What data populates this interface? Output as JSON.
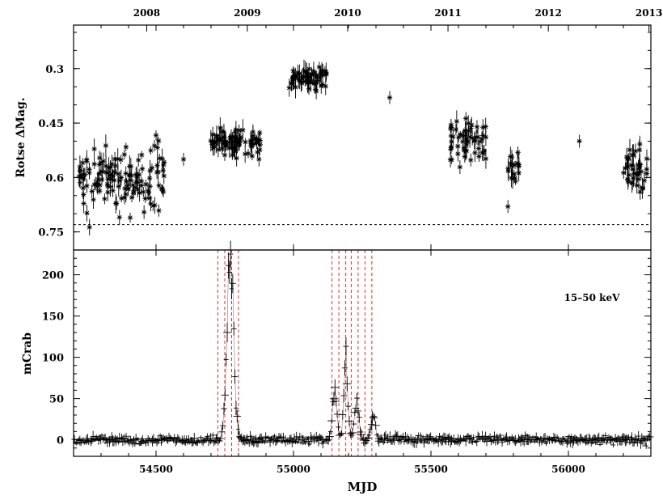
{
  "chart_data": {
    "type": "scatter",
    "xlabel": "MJD",
    "xlim": [
      54200,
      56300
    ],
    "x_ticks": [
      54500,
      55000,
      55500,
      56000
    ],
    "x_tick_labels": [
      "54500",
      "55000",
      "55500",
      "56000"
    ],
    "top_axis": {
      "tick_values": [
        54466,
        54832,
        55197,
        55562,
        55927,
        56293
      ],
      "tick_labels": [
        "2008",
        "2009",
        "2010",
        "2011",
        "2012",
        "2013"
      ]
    },
    "panels": [
      {
        "name": "optical",
        "ylabel": "Rotse ΔMag.",
        "ylim": [
          0.8,
          0.18
        ],
        "inverted": true,
        "y_ticks": [
          0.3,
          0.45,
          0.6,
          0.75
        ],
        "y_tick_labels": [
          "0.3",
          "0.45",
          "0.6",
          "0.75"
        ],
        "reference_line": 0.73,
        "marker": "asterisk",
        "groups": [
          {
            "x_range": [
              54220,
              54530
            ],
            "y_center": 0.6,
            "y_spread": 0.1
          },
          {
            "x_range": [
              54690,
              54880
            ],
            "y_center": 0.5,
            "y_spread": 0.04
          },
          {
            "x_range": [
              54980,
              55120
            ],
            "y_center": 0.33,
            "y_spread": 0.03
          },
          {
            "x_range": [
              55570,
              55700
            ],
            "y_center": 0.5,
            "y_spread": 0.07
          },
          {
            "x_range": [
              55780,
              55820
            ],
            "y_center": 0.58,
            "y_spread": 0.06
          },
          {
            "x_range": [
              56200,
              56290
            ],
            "y_center": 0.58,
            "y_spread": 0.08
          }
        ]
      },
      {
        "name": "xray",
        "ylabel": "mCrab",
        "ylim": [
          -20,
          230
        ],
        "y_ticks": [
          0,
          50,
          100,
          150,
          200
        ],
        "y_tick_labels": [
          "0",
          "50",
          "100",
          "150",
          "200"
        ],
        "annotation": "15–50 keV",
        "marker": "cross",
        "baseline": 0,
        "noise": 8,
        "flares": [
          {
            "center": 54770,
            "peak": 220,
            "width": 12
          },
          {
            "center": 55150,
            "peak": 60,
            "width": 8
          },
          {
            "center": 55190,
            "peak": 100,
            "width": 7
          },
          {
            "center": 55230,
            "peak": 50,
            "width": 8
          },
          {
            "center": 55290,
            "peak": 30,
            "width": 8
          }
        ],
        "dashed_lines": [
          54725,
          54750,
          54775,
          54800,
          55140,
          55165,
          55190,
          55210,
          55235,
          55260,
          55285
        ],
        "dashed_color": "#e03030"
      }
    ]
  }
}
